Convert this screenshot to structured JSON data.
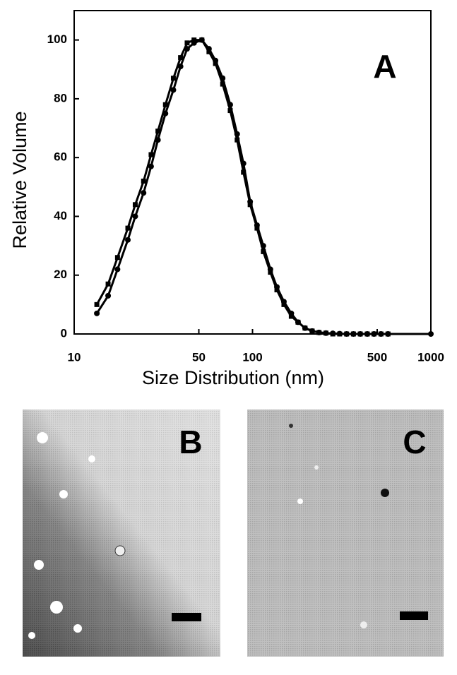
{
  "chart_data": {
    "type": "line",
    "panel_label": "A",
    "xlabel": "Size Distribution (nm)",
    "ylabel": "Relative Volume",
    "xscale": "log",
    "xlim": [
      10,
      1000
    ],
    "xticks": [
      10,
      50,
      100,
      500,
      1000
    ],
    "ylim": [
      0,
      110
    ],
    "yticks": [
      0,
      20,
      40,
      60,
      80,
      100
    ],
    "series": [
      {
        "marker": "circle",
        "color": "#000000",
        "x": [
          13.4,
          15.5,
          17.5,
          20,
          22,
          24.5,
          27,
          29.5,
          32.5,
          36,
          39.5,
          43,
          47,
          52,
          57,
          62,
          68,
          75,
          82,
          89,
          97,
          106,
          115,
          126,
          137,
          150,
          165,
          180,
          197,
          216,
          236,
          258,
          282,
          308,
          337,
          368,
          402,
          440,
          480,
          525,
          575,
          1000
        ],
        "values": [
          7,
          13,
          22,
          32,
          40,
          48,
          57,
          66,
          75,
          83,
          91,
          97,
          99,
          100,
          97,
          93,
          87,
          78,
          68,
          58,
          45,
          37,
          30,
          22,
          16,
          11,
          7,
          4,
          2,
          1,
          0.5,
          0.3,
          0.2,
          0.1,
          0,
          0,
          0,
          0,
          0,
          0,
          0,
          0
        ]
      },
      {
        "marker": "square",
        "color": "#000000",
        "x": [
          13.4,
          15.5,
          17.5,
          20,
          22,
          24.5,
          27,
          29.5,
          32.5,
          36,
          39.5,
          43,
          47,
          52,
          57,
          62,
          68,
          75,
          82,
          89,
          97,
          106,
          115,
          126,
          137,
          150,
          165,
          180,
          197,
          216,
          236,
          258,
          282,
          308,
          337,
          368,
          402,
          440,
          480,
          525,
          575
        ],
        "values": [
          10,
          17,
          26,
          36,
          44,
          52,
          61,
          69,
          78,
          87,
          94,
          99,
          100,
          100,
          96,
          92,
          85,
          76,
          66,
          55,
          44,
          36,
          28,
          21,
          15,
          10,
          6,
          4,
          2,
          1,
          0.5,
          0.3,
          0,
          0,
          0,
          0,
          0,
          0,
          0,
          0,
          0
        ]
      }
    ]
  },
  "images": [
    {
      "label": "B"
    },
    {
      "label": "C"
    }
  ]
}
